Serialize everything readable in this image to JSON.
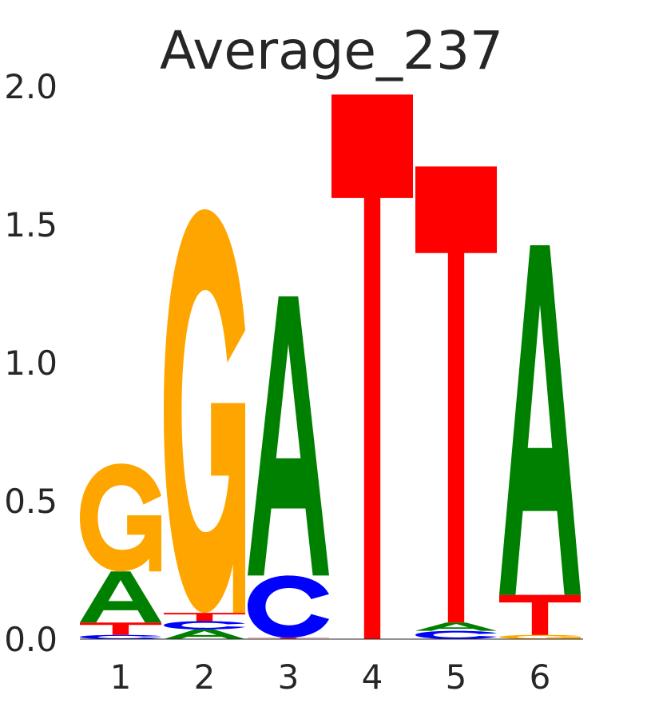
{
  "chart_data": {
    "type": "sequence-logo",
    "title": "Average_237",
    "xlabel": "",
    "ylabel": "",
    "ylim": [
      0,
      2.0
    ],
    "y_ticks": [
      "0.0",
      "0.5",
      "1.0",
      "1.5",
      "2.0"
    ],
    "positions": [
      "1",
      "2",
      "3",
      "4",
      "5",
      "6"
    ],
    "colors": {
      "A": "#008000",
      "C": "#0000ff",
      "G": "#ffa500",
      "T": "#ff0000"
    },
    "stacks": [
      [
        {
          "letter": "C",
          "bottom": 0.0,
          "top": 0.015
        },
        {
          "letter": "T",
          "bottom": 0.015,
          "top": 0.06
        },
        {
          "letter": "A",
          "bottom": 0.06,
          "top": 0.245
        },
        {
          "letter": "G",
          "bottom": 0.245,
          "top": 0.635
        }
      ],
      [
        {
          "letter": "A",
          "bottom": 0.0,
          "top": 0.035
        },
        {
          "letter": "C",
          "bottom": 0.035,
          "top": 0.065
        },
        {
          "letter": "T",
          "bottom": 0.065,
          "top": 0.095
        },
        {
          "letter": "G",
          "bottom": 0.095,
          "top": 1.555
        }
      ],
      [
        {
          "letter": "T",
          "bottom": 0.0,
          "top": 0.005
        },
        {
          "letter": "C",
          "bottom": 0.005,
          "top": 0.23
        },
        {
          "letter": "A",
          "bottom": 0.23,
          "top": 1.24
        }
      ],
      [
        {
          "letter": "T",
          "bottom": 0.0,
          "top": 1.97
        }
      ],
      [
        {
          "letter": "C",
          "bottom": 0.0,
          "top": 0.03
        },
        {
          "letter": "A",
          "bottom": 0.03,
          "top": 0.06
        },
        {
          "letter": "T",
          "bottom": 0.06,
          "top": 1.71
        }
      ],
      [
        {
          "letter": "G",
          "bottom": 0.0,
          "top": 0.015
        },
        {
          "letter": "T",
          "bottom": 0.015,
          "top": 0.16
        },
        {
          "letter": "A",
          "bottom": 0.16,
          "top": 1.425
        }
      ]
    ]
  }
}
